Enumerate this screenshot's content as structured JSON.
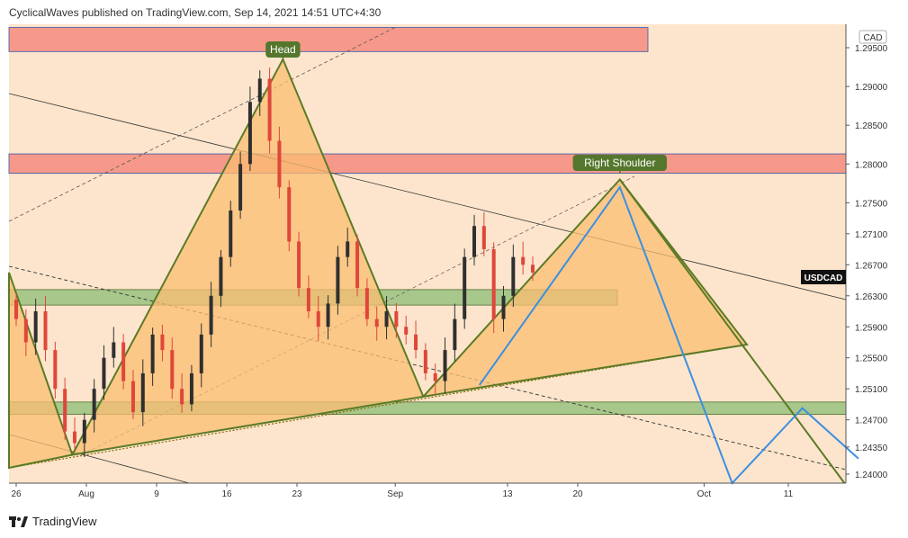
{
  "header": {
    "text": "CyclicalWaves published on TradingView.com, Sep 14, 2021 14:51 UTC+4:30"
  },
  "footer": {
    "brand": "TradingView",
    "logo_icon": "tradingview-logo-icon"
  },
  "colors": {
    "background": "#fce5cc",
    "pattern_fill": "#fbbd72",
    "pattern_stroke": "#5b7a26",
    "resistance_zone": "#f6998a",
    "support_zone": "#a7c78b",
    "projection": "#3d8fe0",
    "candle_up": "#2f2f2f",
    "candle_down": "#e0463a",
    "label_bg": "#55772d"
  },
  "chart_data": {
    "type": "candlestick",
    "symbol": "USDCAD",
    "currency": "CAD",
    "ylim": [
      1.2385,
      1.297
    ],
    "y_ticks": [
      1.295,
      1.29,
      1.285,
      1.28,
      1.275,
      1.271,
      1.267,
      1.263,
      1.259,
      1.255,
      1.251,
      1.247,
      1.2435,
      1.24
    ],
    "x_ticks": [
      "26",
      "Aug",
      "9",
      "16",
      "23",
      "Sep",
      "13",
      "20",
      "Oct",
      "11"
    ],
    "annotations": [
      "Head",
      "Right Shoulder"
    ],
    "price_tag": "USDCAD",
    "zones": [
      {
        "kind": "resistance",
        "low": 1.2945,
        "high": 1.2976
      },
      {
        "kind": "resistance",
        "low": 1.2788,
        "high": 1.2813
      },
      {
        "kind": "support",
        "low": 1.2618,
        "high": 1.2638
      },
      {
        "kind": "support",
        "low": 1.2477,
        "high": 1.2493
      }
    ],
    "pattern_points": [
      {
        "date": "Jul 23",
        "price": 1.266
      },
      {
        "date": "Jul 30",
        "price": 1.2425
      },
      {
        "date": "Aug 20",
        "price": 1.2935
      },
      {
        "date": "Sep 3",
        "price": 1.25
      },
      {
        "date": "Sep 23",
        "price": 1.278
      },
      {
        "date": "Oct 15",
        "price": 1.2385
      }
    ],
    "projection_path": [
      {
        "date": "Sep 9",
        "price": 1.2515
      },
      {
        "date": "Sep 23",
        "price": 1.277
      },
      {
        "date": "Oct 5",
        "price": 1.2385
      },
      {
        "date": "Oct 12",
        "price": 1.2485
      },
      {
        "date": "Oct 16",
        "price": 1.242
      }
    ],
    "closes": [
      1.26,
      1.257,
      1.261,
      1.256,
      1.251,
      1.2455,
      1.244,
      1.247,
      1.251,
      1.255,
      1.257,
      1.252,
      1.248,
      1.253,
      1.258,
      1.256,
      1.251,
      1.249,
      1.253,
      1.258,
      1.263,
      1.268,
      1.274,
      1.28,
      1.288,
      1.291,
      1.283,
      1.277,
      1.27,
      1.264,
      1.261,
      1.259,
      1.262,
      1.268,
      1.27,
      1.264,
      1.26,
      1.259,
      1.261,
      1.259,
      1.258,
      1.256,
      1.253,
      1.252,
      1.256,
      1.26,
      1.268,
      1.272,
      1.269,
      1.26,
      1.263,
      1.268,
      1.267,
      1.266
    ]
  }
}
